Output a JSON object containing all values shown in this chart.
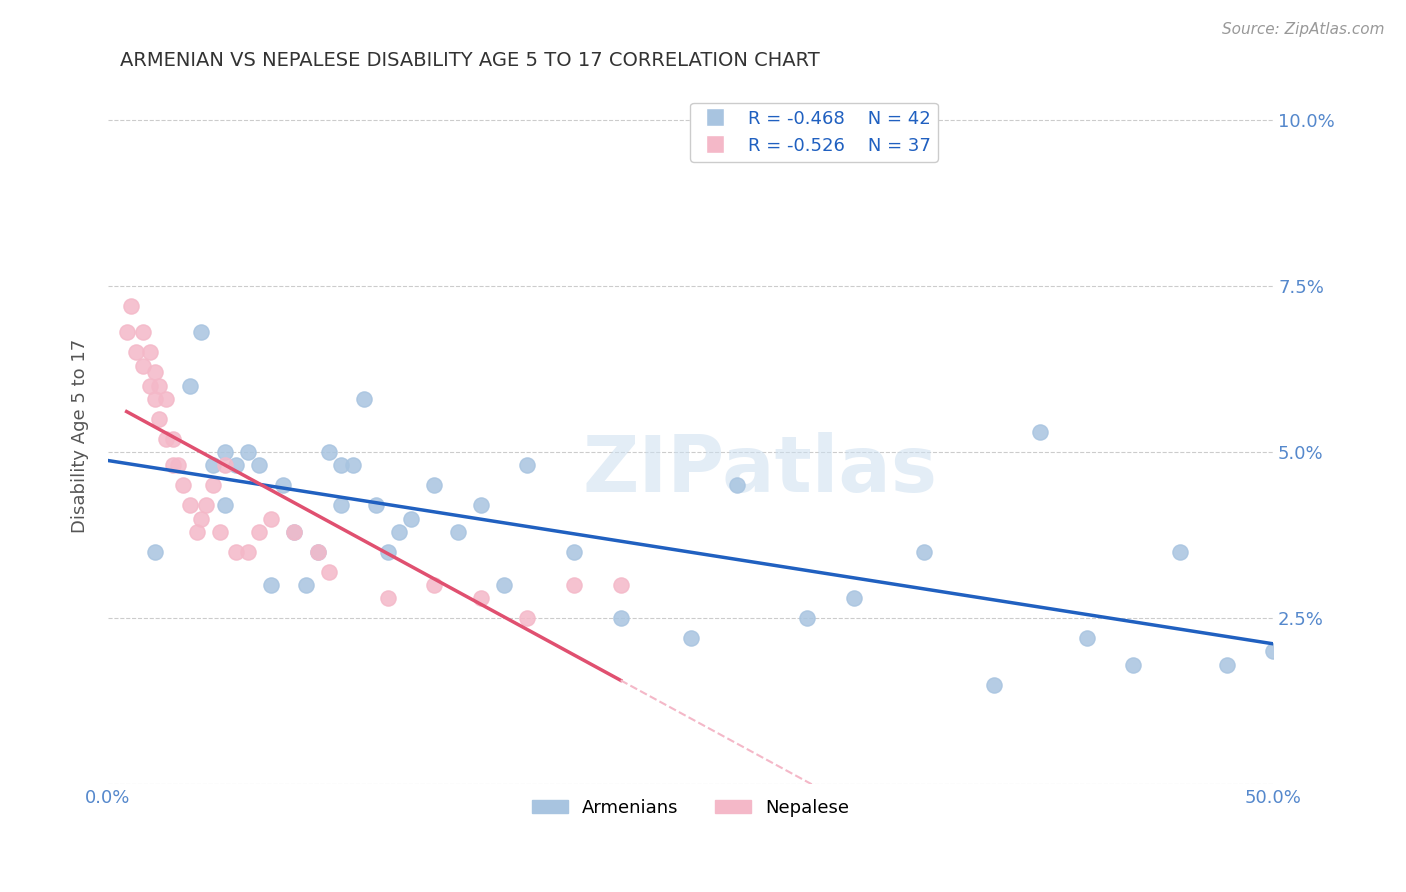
{
  "title": "ARMENIAN VS NEPALESE DISABILITY AGE 5 TO 17 CORRELATION CHART",
  "source_text": "Source: ZipAtlas.com",
  "ylabel": "Disability Age 5 to 17",
  "xlim": [
    0.0,
    0.5
  ],
  "ylim": [
    0.0,
    0.105
  ],
  "xticks": [
    0.0,
    0.1,
    0.2,
    0.3,
    0.4,
    0.5
  ],
  "xticklabels": [
    "0.0%",
    "",
    "",
    "",
    "",
    "50.0%"
  ],
  "yticks": [
    0.0,
    0.025,
    0.05,
    0.075,
    0.1
  ],
  "yticklabels": [
    "",
    "2.5%",
    "5.0%",
    "7.5%",
    "10.0%"
  ],
  "armenian_x": [
    0.02,
    0.035,
    0.04,
    0.045,
    0.05,
    0.05,
    0.055,
    0.06,
    0.065,
    0.07,
    0.075,
    0.08,
    0.085,
    0.09,
    0.095,
    0.1,
    0.1,
    0.105,
    0.11,
    0.115,
    0.12,
    0.125,
    0.13,
    0.14,
    0.15,
    0.16,
    0.17,
    0.18,
    0.2,
    0.22,
    0.25,
    0.27,
    0.3,
    0.32,
    0.35,
    0.38,
    0.4,
    0.42,
    0.44,
    0.46,
    0.48,
    0.5
  ],
  "armenian_y": [
    0.035,
    0.06,
    0.068,
    0.048,
    0.042,
    0.05,
    0.048,
    0.05,
    0.048,
    0.03,
    0.045,
    0.038,
    0.03,
    0.035,
    0.05,
    0.042,
    0.048,
    0.048,
    0.058,
    0.042,
    0.035,
    0.038,
    0.04,
    0.045,
    0.038,
    0.042,
    0.03,
    0.048,
    0.035,
    0.025,
    0.022,
    0.045,
    0.025,
    0.028,
    0.035,
    0.015,
    0.053,
    0.022,
    0.018,
    0.035,
    0.018,
    0.02
  ],
  "nepalese_x": [
    0.008,
    0.01,
    0.012,
    0.015,
    0.015,
    0.018,
    0.018,
    0.02,
    0.02,
    0.022,
    0.022,
    0.025,
    0.025,
    0.028,
    0.028,
    0.03,
    0.032,
    0.035,
    0.038,
    0.04,
    0.042,
    0.045,
    0.048,
    0.05,
    0.055,
    0.06,
    0.065,
    0.07,
    0.08,
    0.09,
    0.095,
    0.12,
    0.14,
    0.16,
    0.18,
    0.2,
    0.22
  ],
  "nepalese_y": [
    0.068,
    0.072,
    0.065,
    0.063,
    0.068,
    0.06,
    0.065,
    0.058,
    0.062,
    0.055,
    0.06,
    0.052,
    0.058,
    0.048,
    0.052,
    0.048,
    0.045,
    0.042,
    0.038,
    0.04,
    0.042,
    0.045,
    0.038,
    0.048,
    0.035,
    0.035,
    0.038,
    0.04,
    0.038,
    0.035,
    0.032,
    0.028,
    0.03,
    0.028,
    0.025,
    0.03,
    0.03
  ],
  "armenian_color": "#a8c4e0",
  "nepalese_color": "#f4b8c8",
  "armenian_line_color": "#2060c0",
  "nepalese_line_color": "#e05070",
  "nepalese_line_dashed_color": "#f4b8c8",
  "legend_R_armenian": "R = -0.468",
  "legend_N_armenian": "N = 42",
  "legend_R_nepalese": "R = -0.526",
  "legend_N_nepalese": "N = 37",
  "watermark": "ZIPatlas",
  "background_color": "#ffffff",
  "title_color": "#333333",
  "axis_label_color": "#555555",
  "tick_color": "#5588cc",
  "grid_color": "#cccccc"
}
